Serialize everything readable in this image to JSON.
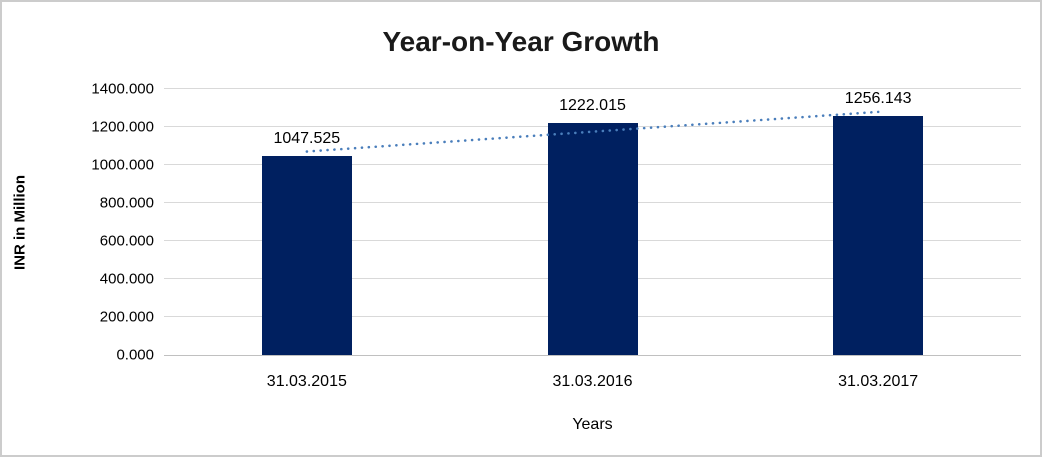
{
  "chart_data": {
    "type": "bar",
    "title": "Year-on-Year Growth",
    "categories": [
      "31.03.2015",
      "31.03.2016",
      "31.03.2017"
    ],
    "values": [
      1047.525,
      1222.015,
      1256.143
    ],
    "data_labels": [
      "1047.525",
      "1222.015",
      "1256.143"
    ],
    "xlabel": "Years",
    "ylabel": "INR in Million",
    "ylim": [
      0,
      1400
    ],
    "yticks": [
      0,
      200,
      400,
      600,
      800,
      1000,
      1200,
      1400
    ],
    "ytick_labels": [
      "0.000",
      "200.000",
      "400.000",
      "600.000",
      "800.000",
      "1000.000",
      "1200.000",
      "1400.000"
    ],
    "grid": true,
    "legend": "none",
    "trendline": {
      "type": "linear",
      "style": "dotted"
    }
  },
  "colors": {
    "bar": "#002060",
    "trendline": "#4A7EBB",
    "gridline": "#D9D9D9",
    "axis_line": "#C0C0C0",
    "title_text": "#1A1A1A",
    "tick_text": "#000000",
    "frame_border": "#CCCCCC",
    "background": "#FFFFFF"
  }
}
